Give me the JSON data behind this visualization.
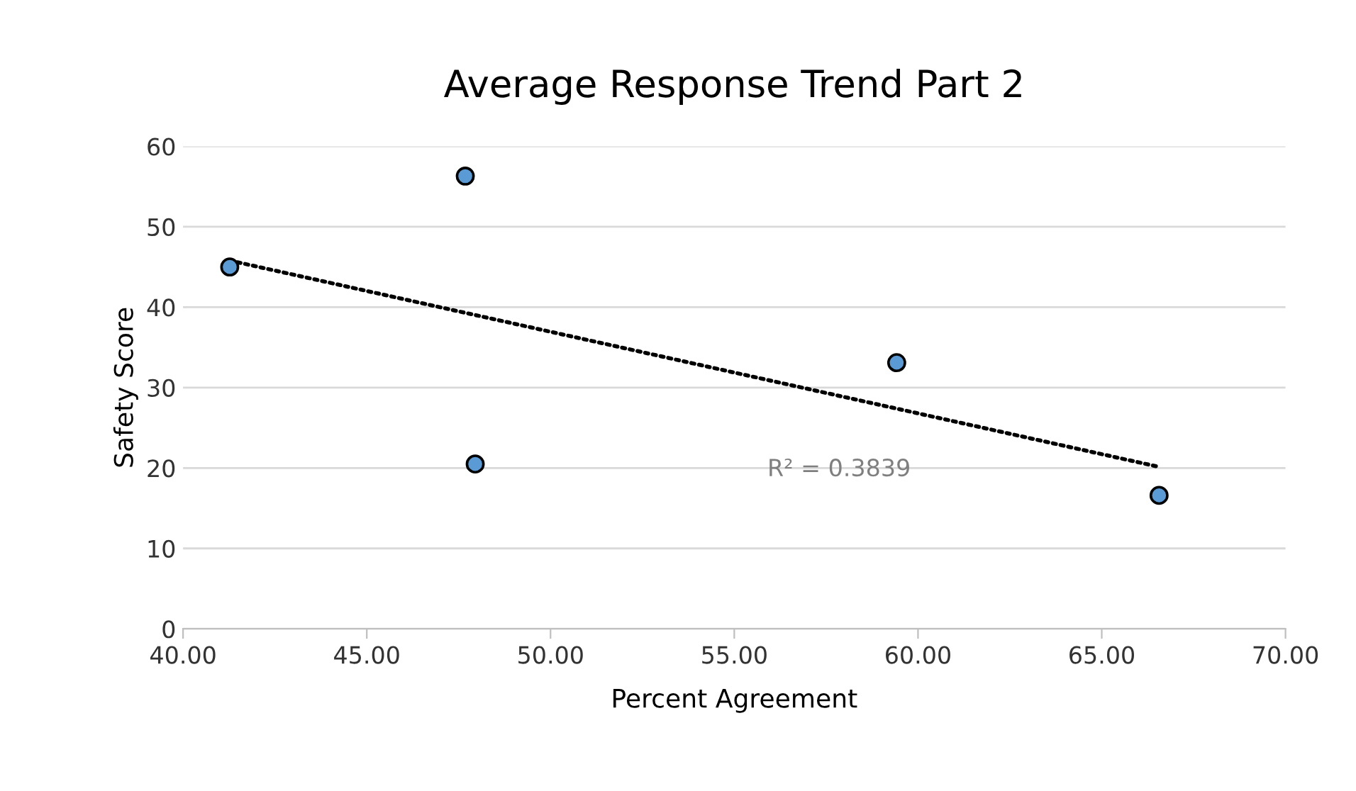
{
  "chart_data": {
    "type": "scatter",
    "title": "Average Response Trend Part 2",
    "xlabel": "Percent Agreement",
    "ylabel": "Safety Score",
    "xlim": [
      40,
      70
    ],
    "xticks": [
      {
        "value": 40,
        "label": "40.00"
      },
      {
        "value": 45,
        "label": "45.00"
      },
      {
        "value": 50,
        "label": "50.00"
      },
      {
        "value": 55,
        "label": "55.00"
      },
      {
        "value": 60,
        "label": "60.00"
      },
      {
        "value": 65,
        "label": "65.00"
      },
      {
        "value": 70,
        "label": "70.00"
      }
    ],
    "ylim": [
      0,
      60
    ],
    "yticks": [
      0,
      10,
      20,
      30,
      40,
      50,
      60
    ],
    "grid": "y",
    "legend": false,
    "series": [
      {
        "color": "#5b9bd5",
        "marker": "circle",
        "x": [
          41.27,
          47.68,
          47.95,
          59.42,
          66.56
        ],
        "values": [
          45.0,
          56.3,
          20.5,
          33.1,
          16.6
        ]
      },
      {
        "type": "line",
        "color": "#000000",
        "line_style": "dotted",
        "marker": "none",
        "x": [
          41.27,
          66.5
        ],
        "values": [
          45.8,
          20.2
        ]
      }
    ],
    "annotations": [
      "R² = 0.3839"
    ]
  }
}
